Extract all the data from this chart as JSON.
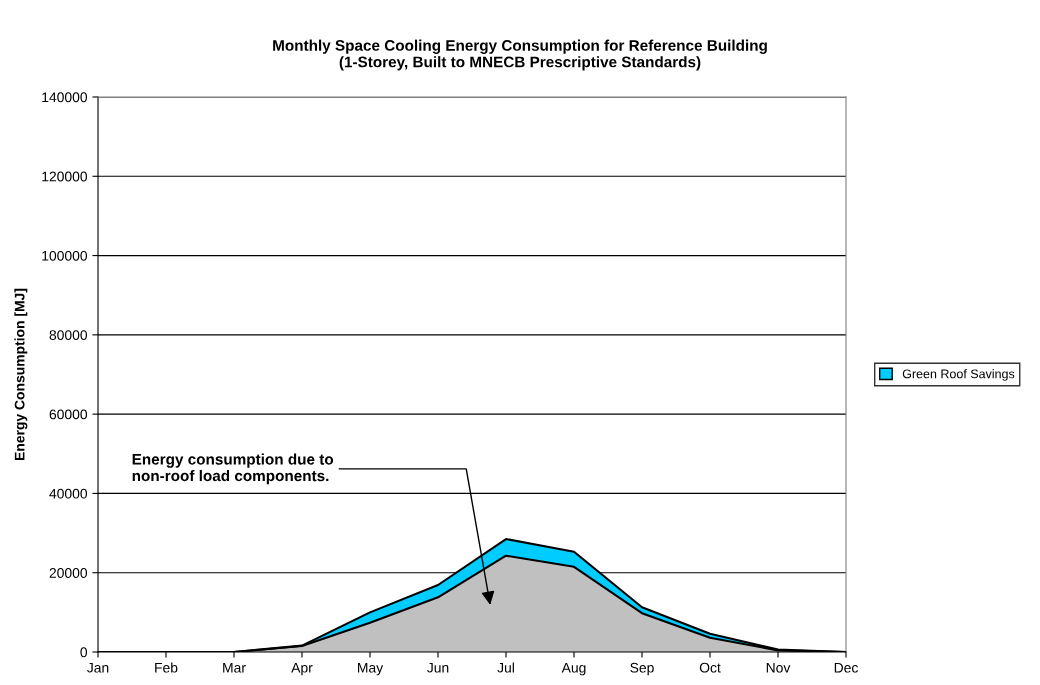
{
  "chart_data": {
    "type": "area",
    "stacked": true,
    "title": "Monthly Space Cooling Energy Consumption for Reference Building\n(1-Storey, Built to MNECB Prescriptive Standards)",
    "ylabel": "Energy Consumption [MJ]",
    "categories": [
      "Jan",
      "Feb",
      "Mar",
      "Apr",
      "May",
      "Jun",
      "Jul",
      "Aug",
      "Sep",
      "Oct",
      "Nov",
      "Dec"
    ],
    "series": [
      {
        "color": "#c0c0c0",
        "values": [
          0,
          0,
          0,
          1500,
          7400,
          13800,
          24300,
          21500,
          9800,
          3600,
          400,
          0
        ]
      },
      {
        "name": "Green Roof Savings",
        "color": "#00ccff",
        "values": [
          0,
          0,
          0,
          100,
          2600,
          3100,
          4200,
          3800,
          1500,
          1000,
          200,
          0
        ]
      }
    ],
    "ylim": [
      0,
      140000
    ],
    "yticks": [
      0,
      20000,
      40000,
      60000,
      80000,
      100000,
      120000,
      140000
    ],
    "grid": "y",
    "legend": "right",
    "annotations": [
      "Energy consumption due to\nnon-roof load components."
    ]
  }
}
